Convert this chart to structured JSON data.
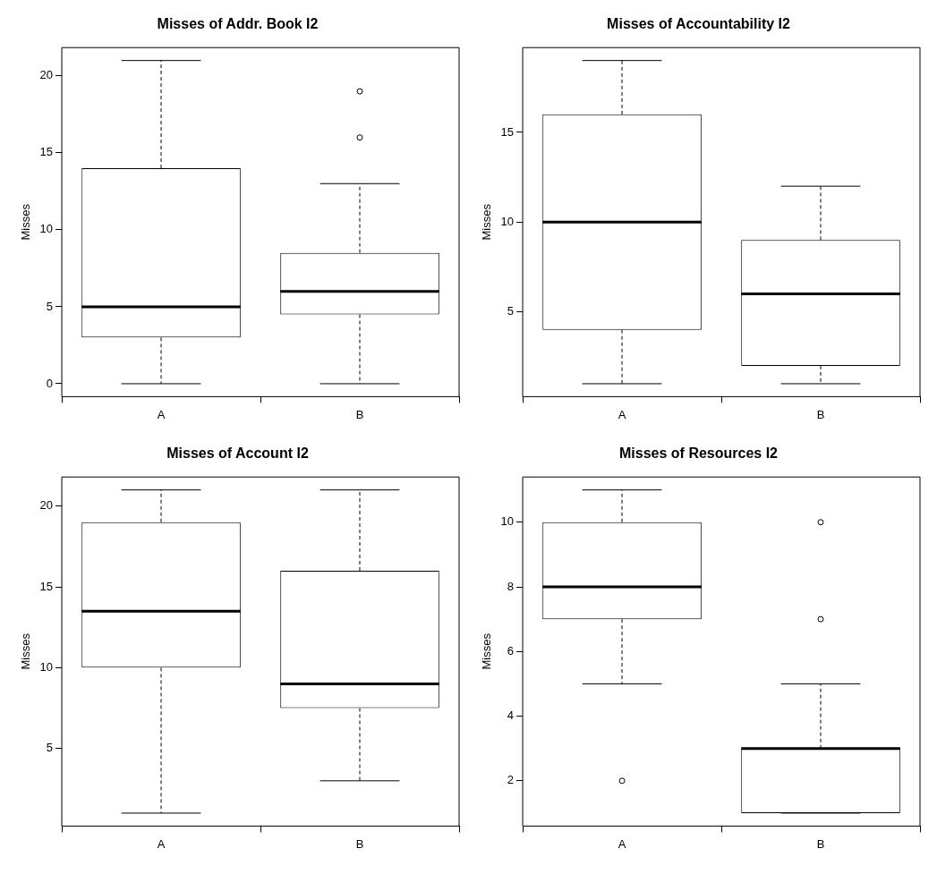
{
  "chart_data": [
    {
      "type": "box",
      "title": "Misses of Addr. Book I2",
      "ylabel": "Misses",
      "categories": [
        "A",
        "B"
      ],
      "boxes": [
        {
          "low": 0,
          "q1": 3,
          "median": 5,
          "q3": 14,
          "high": 21
        },
        {
          "low": 0,
          "q1": 4.5,
          "median": 6,
          "q3": 8.5,
          "high": 13,
          "outliers": [
            16,
            19
          ]
        }
      ],
      "ylim": [
        -0.84,
        21.84
      ],
      "yticks": [
        0,
        5,
        10,
        15,
        20
      ],
      "grid": false
    },
    {
      "type": "box",
      "title": "Misses of Accountability I2",
      "ylabel": "Misses",
      "categories": [
        "A",
        "B"
      ],
      "boxes": [
        {
          "low": 1,
          "q1": 4,
          "median": 10,
          "q3": 16,
          "high": 19
        },
        {
          "low": 1,
          "q1": 2,
          "median": 6,
          "q3": 9,
          "high": 12
        }
      ],
      "ylim": [
        0.28,
        19.72
      ],
      "yticks": [
        5,
        10,
        15
      ],
      "grid": false
    },
    {
      "type": "box",
      "title": "Misses of Account I2",
      "ylabel": "Misses",
      "categories": [
        "A",
        "B"
      ],
      "boxes": [
        {
          "low": 1,
          "q1": 10,
          "median": 13.5,
          "q3": 19,
          "high": 21
        },
        {
          "low": 3,
          "q1": 7.5,
          "median": 9,
          "q3": 16,
          "high": 21
        }
      ],
      "ylim": [
        0.2,
        21.8
      ],
      "yticks": [
        5,
        10,
        15,
        20
      ],
      "grid": false
    },
    {
      "type": "box",
      "title": "Misses of Resources I2",
      "ylabel": "Misses",
      "categories": [
        "A",
        "B"
      ],
      "boxes": [
        {
          "low": 5,
          "q1": 7,
          "median": 8,
          "q3": 10,
          "high": 11,
          "outliers": [
            2
          ]
        },
        {
          "low": 1,
          "q1": 1,
          "median": 3,
          "q3": 3,
          "high": 5,
          "outliers": [
            7,
            10
          ]
        }
      ],
      "ylim": [
        0.6,
        11.4
      ],
      "yticks": [
        2,
        4,
        6,
        8,
        10
      ],
      "grid": false
    }
  ]
}
